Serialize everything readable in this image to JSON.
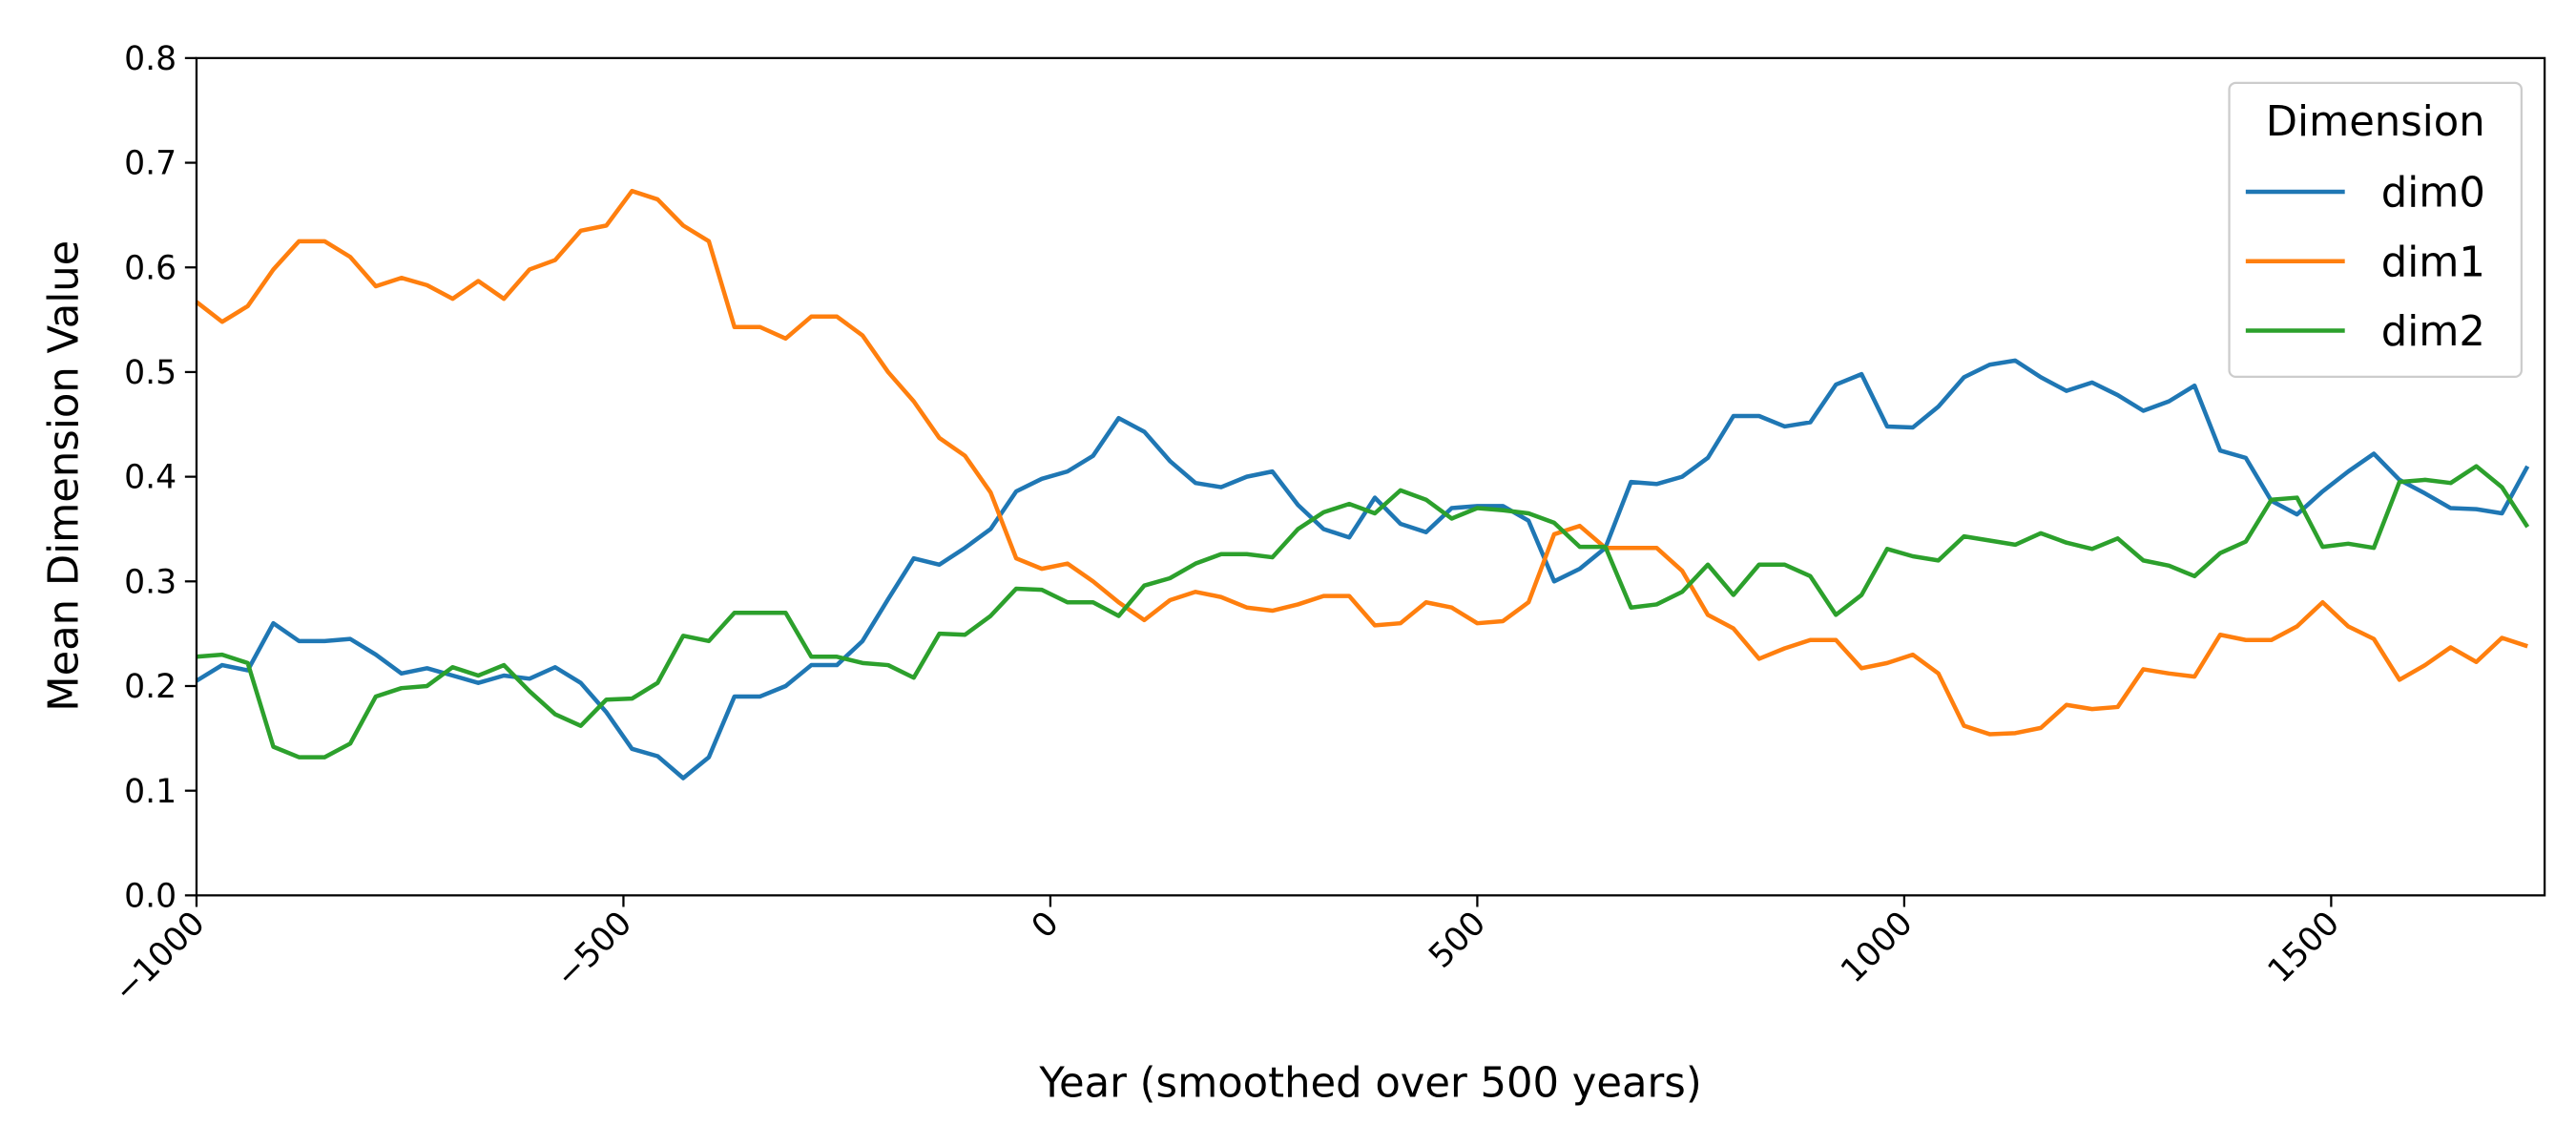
{
  "chart_data": {
    "type": "line",
    "xlabel": "Year (smoothed over 500 years)",
    "ylabel": "Mean Dimension Value",
    "legend_title": "Dimension",
    "legend": "upper right",
    "grid": false,
    "xlim": [
      -1000,
      1750
    ],
    "ylim": [
      0,
      0.8
    ],
    "xticks": [
      {
        "value": -1000,
        "label": "−1000"
      },
      {
        "value": -500,
        "label": "−500"
      },
      0,
      500,
      1000,
      1500
    ],
    "yticks": [
      {
        "value": 0,
        "label": "0.0"
      },
      0.1,
      0.2,
      0.3,
      0.4,
      0.5,
      0.6,
      0.7,
      0.8
    ],
    "x": [
      -1000,
      -970,
      -940,
      -910,
      -880,
      -850,
      -820,
      -790,
      -760,
      -730,
      -700,
      -670,
      -640,
      -610,
      -580,
      -550,
      -520,
      -490,
      -460,
      -430,
      -400,
      -370,
      -340,
      -310,
      -280,
      -250,
      -220,
      -190,
      -160,
      -130,
      -100,
      -70,
      -40,
      -10,
      20,
      50,
      80,
      110,
      140,
      170,
      200,
      230,
      260,
      290,
      320,
      350,
      380,
      410,
      440,
      470,
      500,
      530,
      560,
      590,
      620,
      650,
      680,
      710,
      740,
      770,
      800,
      830,
      860,
      890,
      920,
      950,
      980,
      1010,
      1040,
      1070,
      1100,
      1130,
      1160,
      1190,
      1220,
      1250,
      1280,
      1310,
      1340,
      1370,
      1400,
      1430,
      1460,
      1490,
      1520,
      1550,
      1580,
      1610,
      1640,
      1670,
      1700,
      1730
    ],
    "series": [
      {
        "name": "dim0",
        "color": "#1f77b4",
        "values": [
          0.205,
          0.22,
          0.215,
          0.26,
          0.243,
          0.243,
          0.245,
          0.23,
          0.212,
          0.217,
          0.21,
          0.203,
          0.21,
          0.207,
          0.218,
          0.203,
          0.175,
          0.14,
          0.133,
          0.112,
          0.132,
          0.19,
          0.19,
          0.2,
          0.22,
          0.22,
          0.243,
          0.283,
          0.322,
          0.316,
          0.332,
          0.35,
          0.386,
          0.398,
          0.405,
          0.42,
          0.456,
          0.443,
          0.415,
          0.394,
          0.39,
          0.4,
          0.405,
          0.373,
          0.35,
          0.342,
          0.38,
          0.355,
          0.347,
          0.37,
          0.372,
          0.372,
          0.358,
          0.3,
          0.312,
          0.332,
          0.395,
          0.393,
          0.4,
          0.418,
          0.458,
          0.458,
          0.448,
          0.452,
          0.488,
          0.498,
          0.448,
          0.447,
          0.467,
          0.495,
          0.507,
          0.511,
          0.495,
          0.482,
          0.49,
          0.478,
          0.463,
          0.472,
          0.487,
          0.425,
          0.418,
          0.377,
          0.364,
          0.386,
          0.405,
          0.422,
          0.397,
          0.384,
          0.37,
          0.369,
          0.365,
          0.41
        ]
      },
      {
        "name": "dim1",
        "color": "#ff7f0e",
        "values": [
          0.567,
          0.548,
          0.563,
          0.598,
          0.625,
          0.625,
          0.61,
          0.582,
          0.59,
          0.583,
          0.57,
          0.587,
          0.57,
          0.598,
          0.607,
          0.635,
          0.64,
          0.673,
          0.665,
          0.64,
          0.625,
          0.543,
          0.543,
          0.532,
          0.553,
          0.553,
          0.535,
          0.5,
          0.472,
          0.437,
          0.42,
          0.385,
          0.322,
          0.312,
          0.317,
          0.3,
          0.28,
          0.263,
          0.282,
          0.29,
          0.285,
          0.275,
          0.272,
          0.278,
          0.286,
          0.286,
          0.258,
          0.26,
          0.28,
          0.275,
          0.26,
          0.262,
          0.28,
          0.345,
          0.353,
          0.332,
          0.332,
          0.332,
          0.31,
          0.268,
          0.255,
          0.226,
          0.236,
          0.244,
          0.244,
          0.217,
          0.222,
          0.23,
          0.212,
          0.162,
          0.154,
          0.155,
          0.16,
          0.182,
          0.178,
          0.18,
          0.216,
          0.212,
          0.209,
          0.249,
          0.244,
          0.244,
          0.257,
          0.28,
          0.257,
          0.245,
          0.206,
          0.22,
          0.237,
          0.223,
          0.246,
          0.238
        ]
      },
      {
        "name": "dim2",
        "color": "#2ca02c",
        "values": [
          0.228,
          0.23,
          0.222,
          0.142,
          0.132,
          0.132,
          0.145,
          0.19,
          0.198,
          0.2,
          0.218,
          0.21,
          0.22,
          0.195,
          0.173,
          0.162,
          0.187,
          0.188,
          0.203,
          0.248,
          0.243,
          0.27,
          0.27,
          0.27,
          0.228,
          0.228,
          0.222,
          0.22,
          0.208,
          0.25,
          0.249,
          0.267,
          0.293,
          0.292,
          0.28,
          0.28,
          0.267,
          0.296,
          0.303,
          0.317,
          0.326,
          0.326,
          0.323,
          0.35,
          0.366,
          0.374,
          0.365,
          0.387,
          0.378,
          0.36,
          0.37,
          0.368,
          0.365,
          0.356,
          0.333,
          0.333,
          0.275,
          0.278,
          0.29,
          0.316,
          0.287,
          0.316,
          0.316,
          0.305,
          0.268,
          0.287,
          0.331,
          0.324,
          0.32,
          0.343,
          0.339,
          0.335,
          0.346,
          0.337,
          0.331,
          0.341,
          0.32,
          0.315,
          0.305,
          0.327,
          0.338,
          0.378,
          0.38,
          0.333,
          0.336,
          0.332,
          0.395,
          0.397,
          0.394,
          0.41,
          0.39,
          0.352
        ]
      }
    ]
  }
}
